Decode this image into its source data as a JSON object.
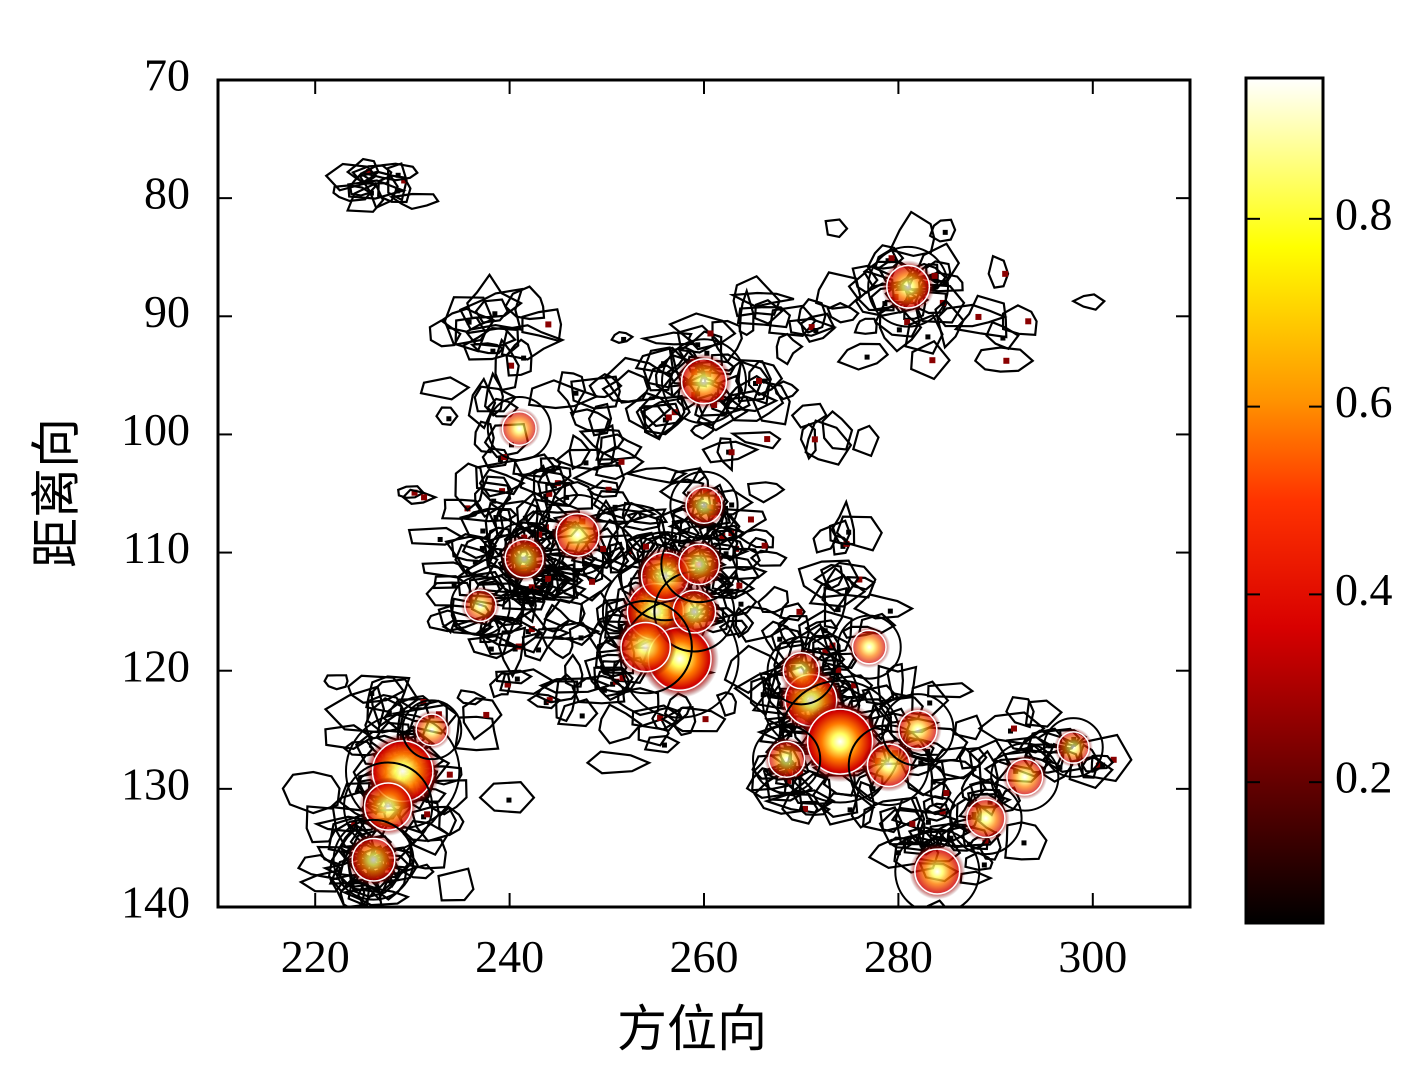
{
  "chart_data": {
    "type": "heatmap",
    "title": "",
    "xlabel": "方位向",
    "ylabel": "距离向",
    "xlim": [
      210,
      310
    ],
    "ylim": [
      70,
      140
    ],
    "y_axis_reversed": true,
    "x_ticks": [
      220,
      240,
      260,
      280,
      300
    ],
    "y_ticks": [
      70,
      80,
      90,
      100,
      110,
      120,
      130,
      140
    ],
    "colorbar": {
      "colormap": "hot",
      "range": [
        0.05,
        0.95
      ],
      "ticks": [
        0.2,
        0.4,
        0.6,
        0.8
      ],
      "tick_labels": [
        "0.2",
        "0.4",
        "0.6",
        "0.8"
      ]
    },
    "grid": false,
    "legend": "none",
    "peaks": [
      {
        "x": 229,
        "y": 128.5,
        "value": 0.85
      },
      {
        "x": 227.5,
        "y": 131.5,
        "value": 0.55
      },
      {
        "x": 226,
        "y": 136,
        "value": 0.45
      },
      {
        "x": 255,
        "y": 115,
        "value": 0.75
      },
      {
        "x": 257.5,
        "y": 119,
        "value": 0.9
      },
      {
        "x": 256,
        "y": 112,
        "value": 0.55
      },
      {
        "x": 259,
        "y": 115,
        "value": 0.45
      },
      {
        "x": 254,
        "y": 118,
        "value": 0.6
      },
      {
        "x": 259.5,
        "y": 111,
        "value": 0.4
      },
      {
        "x": 271,
        "y": 122.5,
        "value": 0.65
      },
      {
        "x": 274,
        "y": 126,
        "value": 0.95
      },
      {
        "x": 270,
        "y": 120,
        "value": 0.3
      },
      {
        "x": 279,
        "y": 128,
        "value": 0.45
      },
      {
        "x": 282,
        "y": 125,
        "value": 0.35
      },
      {
        "x": 268.5,
        "y": 127.5,
        "value": 0.3
      },
      {
        "x": 284,
        "y": 137,
        "value": 0.5
      },
      {
        "x": 289,
        "y": 132.5,
        "value": 0.35
      },
      {
        "x": 293,
        "y": 129,
        "value": 0.3
      },
      {
        "x": 260,
        "y": 95.5,
        "value": 0.5
      },
      {
        "x": 281,
        "y": 87.5,
        "value": 0.45
      },
      {
        "x": 247,
        "y": 108.5,
        "value": 0.45
      },
      {
        "x": 241.5,
        "y": 110.5,
        "value": 0.35
      },
      {
        "x": 241,
        "y": 99.5,
        "value": 0.25
      },
      {
        "x": 260,
        "y": 106,
        "value": 0.3
      },
      {
        "x": 237,
        "y": 114.5,
        "value": 0.2
      },
      {
        "x": 277,
        "y": 118,
        "value": 0.25
      },
      {
        "x": 298,
        "y": 126.5,
        "value": 0.2
      },
      {
        "x": 232,
        "y": 125,
        "value": 0.2
      }
    ],
    "clusters": [
      {
        "x": 228,
        "y": 129,
        "sx": 3.0,
        "sy": 4.5,
        "n": 60
      },
      {
        "x": 225,
        "y": 136,
        "sx": 2.5,
        "sy": 2.0,
        "n": 30
      },
      {
        "x": 256,
        "y": 114,
        "sx": 4.0,
        "sy": 5.0,
        "n": 90
      },
      {
        "x": 262,
        "y": 108,
        "sx": 3.0,
        "sy": 4.0,
        "n": 30
      },
      {
        "x": 272,
        "y": 124,
        "sx": 4.5,
        "sy": 4.0,
        "n": 90
      },
      {
        "x": 285,
        "y": 132,
        "sx": 4.0,
        "sy": 4.0,
        "n": 50
      },
      {
        "x": 245,
        "y": 108,
        "sx": 6.0,
        "sy": 5.0,
        "n": 70
      },
      {
        "x": 240,
        "y": 114,
        "sx": 4.0,
        "sy": 4.0,
        "n": 40
      },
      {
        "x": 258,
        "y": 95,
        "sx": 6.0,
        "sy": 2.5,
        "n": 45
      },
      {
        "x": 280,
        "y": 88,
        "sx": 8.0,
        "sy": 2.5,
        "n": 45
      },
      {
        "x": 238,
        "y": 93,
        "sx": 3.0,
        "sy": 3.0,
        "n": 20
      },
      {
        "x": 226,
        "y": 78,
        "sx": 2.0,
        "sy": 1.2,
        "n": 12
      },
      {
        "x": 274,
        "y": 112,
        "sx": 2.5,
        "sy": 6.0,
        "n": 25
      },
      {
        "x": 298,
        "y": 127,
        "sx": 3.0,
        "sy": 1.5,
        "n": 15
      },
      {
        "x": 244,
        "y": 120,
        "sx": 5.0,
        "sy": 4.0,
        "n": 20
      }
    ]
  }
}
